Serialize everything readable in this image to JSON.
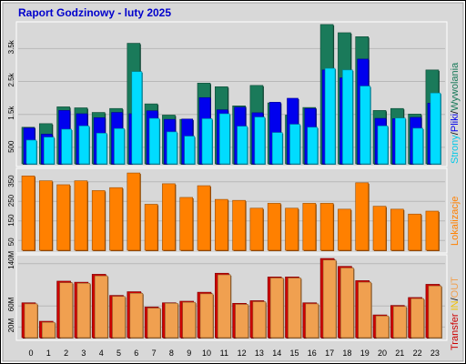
{
  "chart_data": [
    {
      "type": "bar",
      "title": "Raport Godzinowy -  luty 2025",
      "ylabel_parts": [
        "Strony",
        "/",
        "Pliki",
        "/",
        "Wywolania"
      ],
      "y_ticks": [
        "500",
        "1.5k",
        "2.5k",
        "3.5k"
      ],
      "categories": [
        "0",
        "1",
        "2",
        "3",
        "4",
        "5",
        "6",
        "7",
        "8",
        "9",
        "10",
        "11",
        "12",
        "13",
        "14",
        "15",
        "16",
        "17",
        "18",
        "19",
        "20",
        "21",
        "22",
        "23"
      ],
      "ylim": [
        0,
        4200
      ],
      "series": [
        {
          "name": "Wywolania",
          "color": "#1a7a5a",
          "values": [
            1110,
            1220,
            1730,
            1700,
            1560,
            1680,
            3660,
            1820,
            1480,
            1350,
            2450,
            2340,
            1760,
            2380,
            1850,
            1480,
            1710,
            4230,
            3980,
            3860,
            1620,
            1680,
            1510,
            2850
          ]
        },
        {
          "name": "Pliki",
          "color": "#0000ee",
          "values": [
            1090,
            900,
            1620,
            1520,
            1400,
            1560,
            1520,
            1610,
            1350,
            1360,
            2010,
            1640,
            1720,
            1550,
            1870,
            1990,
            1680,
            2850,
            2610,
            3180,
            1380,
            1370,
            1410,
            1840
          ]
        },
        {
          "name": "Strony",
          "color": "#00dcff",
          "values": [
            720,
            810,
            1050,
            1150,
            930,
            1070,
            2800,
            1380,
            970,
            840,
            1370,
            1520,
            1140,
            1420,
            950,
            1200,
            1110,
            2900,
            2850,
            2360,
            1150,
            1390,
            1080,
            2150
          ]
        }
      ]
    },
    {
      "type": "bar",
      "ylabel": "Lokalizacje",
      "y_ticks": [
        "50",
        "150",
        "250",
        "350"
      ],
      "categories": [
        "0",
        "1",
        "2",
        "3",
        "4",
        "5",
        "6",
        "7",
        "8",
        "9",
        "10",
        "11",
        "12",
        "13",
        "14",
        "15",
        "16",
        "17",
        "18",
        "19",
        "20",
        "21",
        "22",
        "23"
      ],
      "ylim": [
        0,
        400
      ],
      "series": [
        {
          "name": "Lokalizacje",
          "color": "#ff8000",
          "values": [
            380,
            355,
            335,
            355,
            305,
            320,
            395,
            235,
            340,
            270,
            330,
            260,
            255,
            215,
            240,
            215,
            240,
            240,
            210,
            345,
            225,
            210,
            185,
            200
          ]
        }
      ]
    },
    {
      "type": "bar",
      "ylabel_parts": [
        "Transfer",
        "IN",
        "/",
        "OUT"
      ],
      "y_ticks": [
        "20M",
        "60M",
        "140M"
      ],
      "categories": [
        "0",
        "1",
        "2",
        "3",
        "4",
        "5",
        "6",
        "7",
        "8",
        "9",
        "10",
        "11",
        "12",
        "13",
        "14",
        "15",
        "16",
        "17",
        "18",
        "19",
        "20",
        "21",
        "22",
        "23"
      ],
      "ylim": [
        0,
        150
      ],
      "series": [
        {
          "name": "IN",
          "color": "#cc0000",
          "values": [
            66,
            31,
            107,
            105,
            120,
            80,
            87,
            58,
            66,
            69,
            86,
            122,
            65,
            70,
            115,
            115,
            66,
            150,
            135,
            108,
            43,
            61,
            76,
            101
          ]
        },
        {
          "name": "OUT",
          "color": "#f0a050",
          "values": [
            64,
            29,
            104,
            103,
            117,
            78,
            84,
            56,
            65,
            67,
            83,
            119,
            63,
            68,
            113,
            113,
            64,
            147,
            132,
            105,
            41,
            59,
            74,
            98
          ]
        }
      ]
    }
  ],
  "x_labels": [
    "0",
    "1",
    "2",
    "3",
    "4",
    "5",
    "6",
    "7",
    "8",
    "9",
    "10",
    "11",
    "12",
    "13",
    "14",
    "15",
    "16",
    "17",
    "18",
    "19",
    "20",
    "21",
    "22",
    "23"
  ]
}
